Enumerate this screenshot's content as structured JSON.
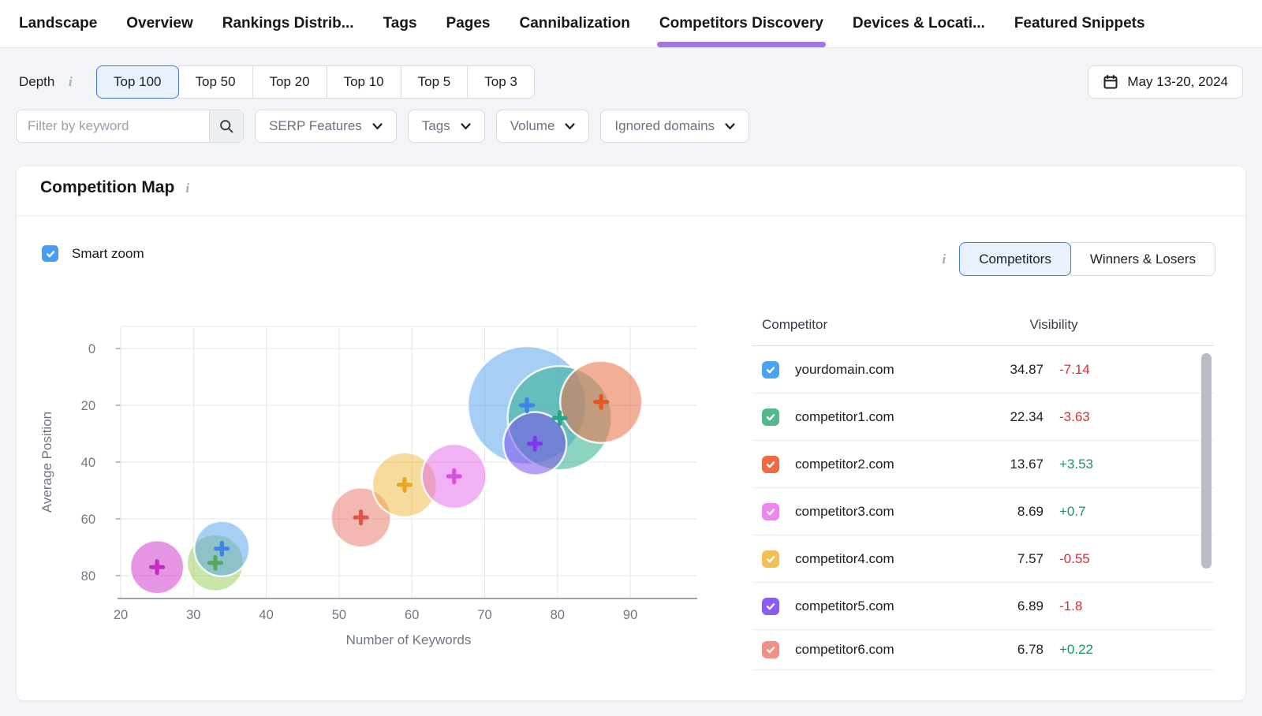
{
  "nav": {
    "tabs": [
      {
        "label": "Landscape",
        "active": false
      },
      {
        "label": "Overview",
        "active": false
      },
      {
        "label": "Rankings Distrib...",
        "active": false
      },
      {
        "label": "Tags",
        "active": false
      },
      {
        "label": "Pages",
        "active": false
      },
      {
        "label": "Cannibalization",
        "active": false
      },
      {
        "label": "Competitors Discovery",
        "active": true
      },
      {
        "label": "Devices & Locati...",
        "active": false
      },
      {
        "label": "Featured Snippets",
        "active": false
      }
    ]
  },
  "toolbar": {
    "depth_label": "Depth",
    "depth_options": [
      {
        "label": "Top 100",
        "selected": true
      },
      {
        "label": "Top 50",
        "selected": false
      },
      {
        "label": "Top 20",
        "selected": false
      },
      {
        "label": "Top 10",
        "selected": false
      },
      {
        "label": "Top 5",
        "selected": false
      },
      {
        "label": "Top 3",
        "selected": false
      }
    ],
    "date_range": "May 13-20, 2024"
  },
  "filters": {
    "keyword_placeholder": "Filter by keyword",
    "dropdowns": [
      "SERP Features",
      "Tags",
      "Volume",
      "Ignored domains"
    ]
  },
  "panel": {
    "title": "Competition Map",
    "smart_zoom_label": "Smart zoom",
    "smart_zoom_checked": true,
    "view_toggle": [
      {
        "label": "Competitors",
        "selected": true
      },
      {
        "label": "Winners & Losers",
        "selected": false
      }
    ]
  },
  "table": {
    "columns": [
      "Competitor",
      "Visibility"
    ],
    "rows": [
      {
        "domain": "yourdomain.com",
        "color": "#4ba2f2",
        "visibility": "34.87",
        "change": "-7.14",
        "trend": "down"
      },
      {
        "domain": "competitor1.com",
        "color": "#54b98a",
        "visibility": "22.34",
        "change": "-3.63",
        "trend": "down"
      },
      {
        "domain": "competitor2.com",
        "color": "#ed6a42",
        "visibility": "13.67",
        "change": "+3.53",
        "trend": "up"
      },
      {
        "domain": "competitor3.com",
        "color": "#ef85ef",
        "visibility": "8.69",
        "change": "+0.7",
        "trend": "up"
      },
      {
        "domain": "competitor4.com",
        "color": "#f0c052",
        "visibility": "7.57",
        "change": "-0.55",
        "trend": "down"
      },
      {
        "domain": "competitor5.com",
        "color": "#8b5cf2",
        "visibility": "6.89",
        "change": "-1.8",
        "trend": "down"
      },
      {
        "domain": "competitor6.com",
        "color": "#f28e85",
        "visibility": "6.78",
        "change": "+0.22",
        "trend": "up"
      }
    ]
  },
  "chart_data": {
    "type": "scatter",
    "subtype": "bubble",
    "title": "Competition Map",
    "xlabel": "Number of Keywords",
    "ylabel": "Average Position",
    "x_ticks": [
      20,
      30,
      40,
      50,
      60,
      70,
      80,
      90
    ],
    "y_ticks": [
      0,
      20,
      40,
      60,
      80
    ],
    "xlim": [
      20,
      99
    ],
    "ylim": [
      -8,
      88
    ],
    "y_axis_inverted": true,
    "grid": true,
    "bubbles": [
      {
        "domain": "competitor6.com",
        "x": 53,
        "y": 59.5,
        "r": 38,
        "fill": "rgba(232,113,101,0.5)",
        "marker": "#e25549"
      },
      {
        "domain": "competitor4.com",
        "x": 59,
        "y": 48,
        "r": 41,
        "fill": "rgba(240,184,58,0.5)",
        "marker": "#eaa61e"
      },
      {
        "domain": "competitor3.com",
        "x": 65.8,
        "y": 45,
        "r": 41,
        "fill": "rgba(226,100,236,0.5)",
        "marker": "#d94fe0"
      },
      {
        "domain": "",
        "x": 33,
        "y": 75.5,
        "r": 36,
        "fill": "rgba(150,204,82,0.5)",
        "marker": "#57a75a"
      },
      {
        "domain": "",
        "x": 33.9,
        "y": 70.5,
        "r": 35,
        "fill": "rgba(80,160,235,0.5)",
        "marker": "#3f84e8"
      },
      {
        "domain": "",
        "x": 25,
        "y": 77,
        "r": 34,
        "fill": "rgba(212,70,208,0.58)",
        "marker": "#c62bc6"
      },
      {
        "domain": "yourdomain.com",
        "x": 75.8,
        "y": 20,
        "r": 75,
        "fill": "rgba(80,160,235,0.5)",
        "marker": "#3f84e8"
      },
      {
        "domain": "competitor1.com",
        "x": 80.3,
        "y": 24.5,
        "r": 66,
        "fill": "rgba(47,174,144,0.55)",
        "marker": "#2aa387"
      },
      {
        "domain": "competitor2.com",
        "x": 86,
        "y": 18.8,
        "r": 52,
        "fill": "rgba(232,116,74,0.58)",
        "marker": "#e8561f"
      },
      {
        "domain": "competitor5.com",
        "x": 76.9,
        "y": 33.5,
        "r": 40,
        "fill": "rgba(124,82,232,0.55)",
        "marker": "#7c3aed"
      }
    ]
  },
  "colors": {
    "accent_purple": "#a472f0",
    "selected_blue_border": "#4178e0",
    "selected_blue_bg": "#e9f1fd",
    "checkbox_blue": "#459df5",
    "positive_green": "#1f915f",
    "negative_red": "#db2f2f",
    "grid_line": "#e3e5ea",
    "axis_line": "#9aa3b0",
    "muted_text": "#6e7683"
  }
}
